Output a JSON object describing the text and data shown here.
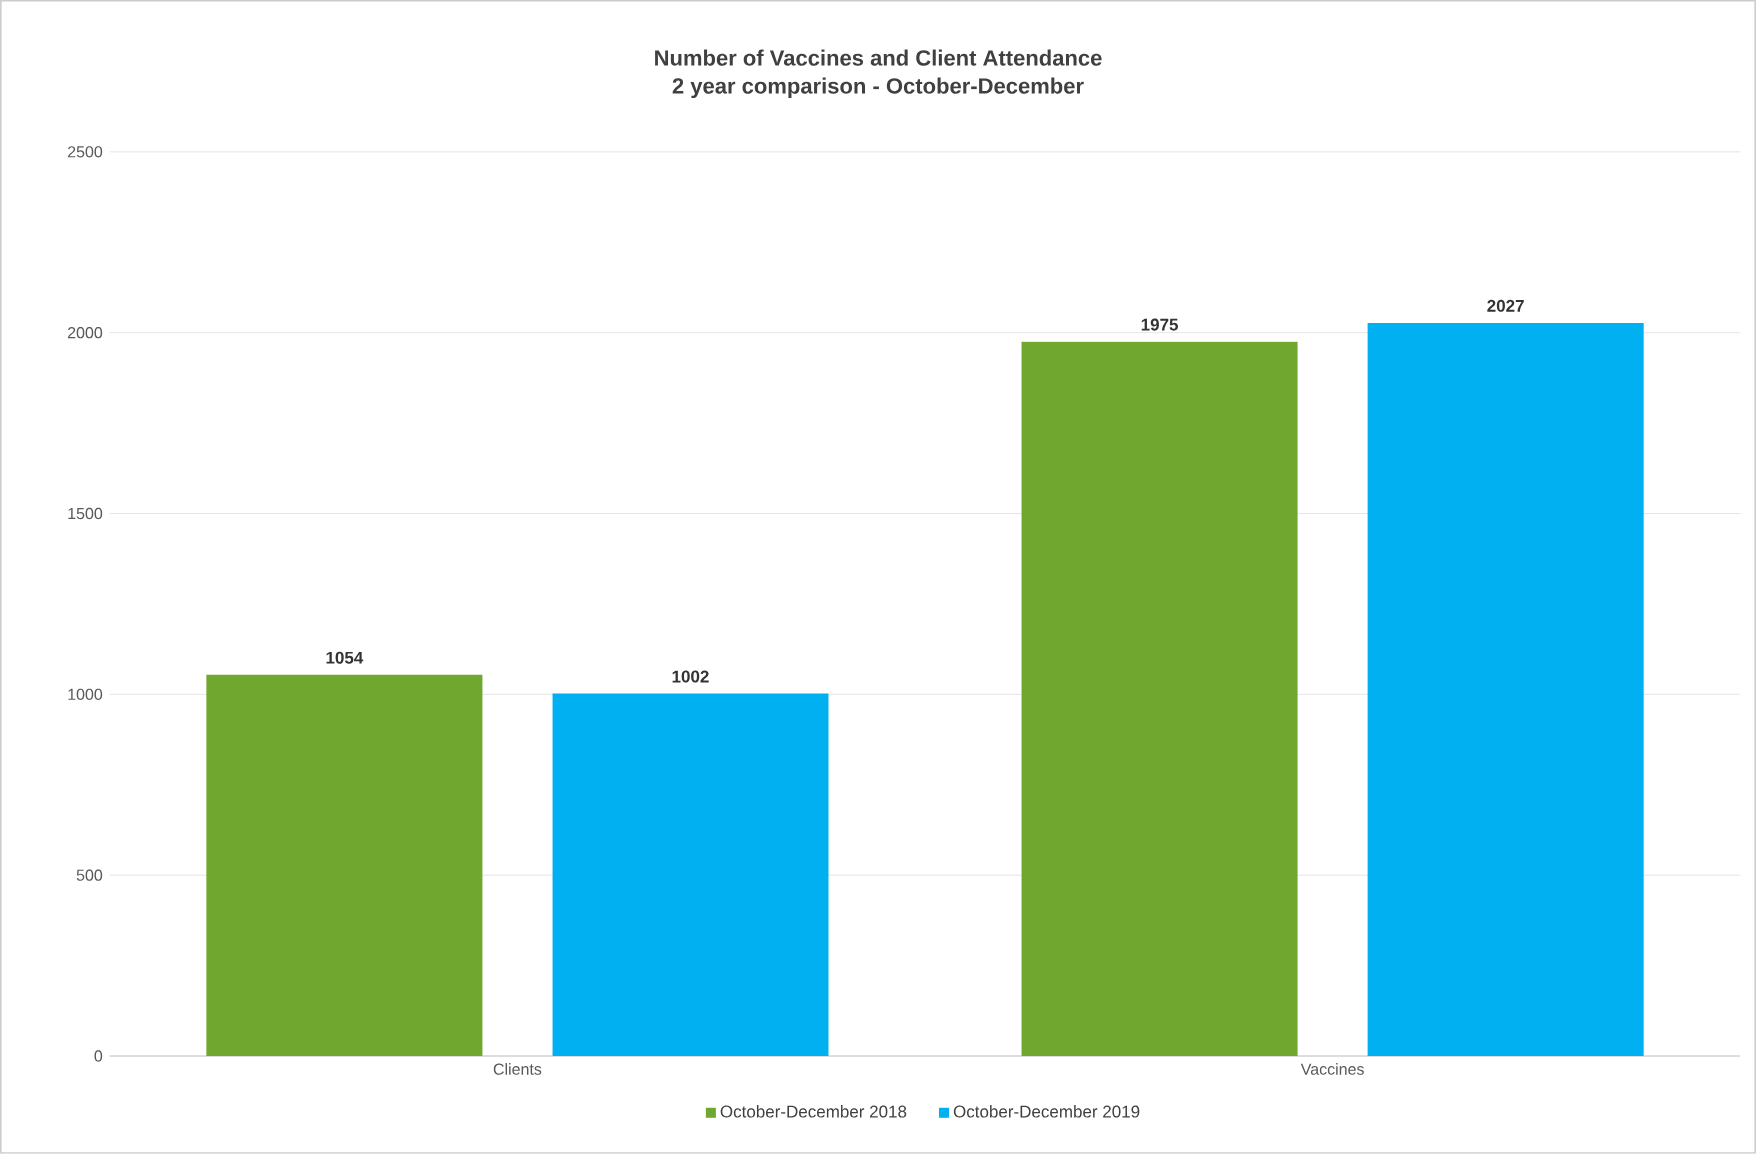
{
  "chart_data": {
    "type": "bar",
    "title": "Number of Vaccines and Client Attendance",
    "subtitle": "2 year comparison - October-December",
    "categories": [
      "Clients",
      "Vaccines"
    ],
    "series": [
      {
        "name": "October-December 2018",
        "color": "#70a82f",
        "values": [
          1054,
          1975
        ]
      },
      {
        "name": "October-December 2019",
        "color": "#00b0f0",
        "values": [
          1002,
          2027
        ]
      }
    ],
    "ylim": [
      0,
      2500
    ],
    "yticks": [
      0,
      500,
      1000,
      1500,
      2000,
      2500
    ],
    "grid": "y",
    "legend": "bottom",
    "data_labels": true
  }
}
